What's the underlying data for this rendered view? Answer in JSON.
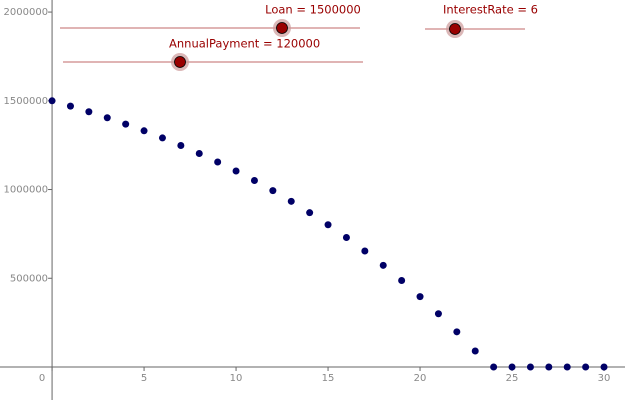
{
  "chart_data": {
    "type": "scatter",
    "x": [
      0,
      1,
      2,
      3,
      4,
      5,
      6,
      7,
      8,
      9,
      10,
      11,
      12,
      13,
      14,
      15,
      16,
      17,
      18,
      19,
      20,
      21,
      22,
      23,
      24,
      25,
      26,
      27,
      28,
      29,
      30
    ],
    "values": [
      1500000,
      1470000,
      1438200,
      1404492,
      1368762,
      1330887,
      1290740,
      1248185,
      1203076,
      1155261,
      1104576,
      1050851,
      993902,
      933536,
      869548,
      801721,
      729824,
      653614,
      572830,
      487200,
      396432,
      300218,
      198231,
      90125,
      0,
      0,
      0,
      0,
      0,
      0,
      0
    ],
    "color": "#000066",
    "xlim": [
      -2.83,
      31.14
    ],
    "ylim": [
      -186000,
      2068000
    ],
    "xticks": [
      0,
      5,
      10,
      15,
      20,
      25,
      30
    ],
    "yticks": [
      500000,
      1000000,
      1500000,
      2000000
    ],
    "grid": false,
    "sliders": [
      {
        "label": "Loan = 1500000"
      },
      {
        "label": "AnnualPayment = 120000"
      },
      {
        "label": "InterestRate = 6"
      }
    ]
  }
}
